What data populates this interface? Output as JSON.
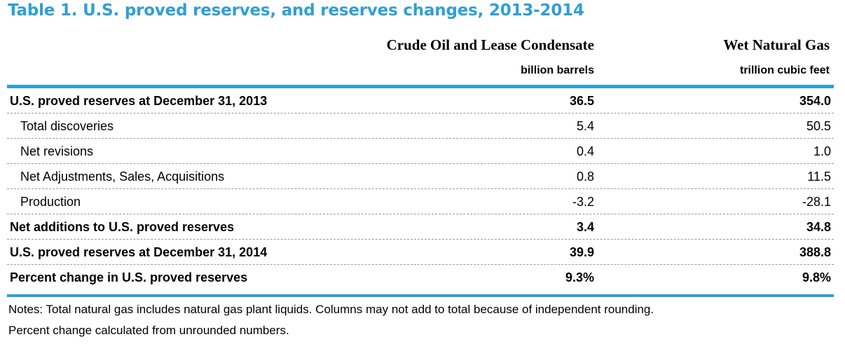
{
  "title": "Table 1. U.S. proved reserves, and reserves changes, 2013-2014",
  "columns": [
    {
      "header": "Crude Oil and Lease Condensate",
      "unit": "billion barrels"
    },
    {
      "header": "Wet Natural Gas",
      "unit": "trillion cubic feet"
    }
  ],
  "rows": [
    {
      "label": "U.S. proved reserves at December 31, 2013",
      "oil": "36.5",
      "gas": "354.0"
    },
    {
      "label": "Total discoveries",
      "oil": "5.4",
      "gas": "50.5"
    },
    {
      "label": "Net revisions",
      "oil": "0.4",
      "gas": "1.0"
    },
    {
      "label": "Net Adjustments, Sales, Acquisitions",
      "oil": "0.8",
      "gas": "11.5"
    },
    {
      "label": "Production",
      "oil": "-3.2",
      "gas": "-28.1"
    },
    {
      "label": "Net additions to U.S. proved reserves",
      "oil": "3.4",
      "gas": "34.8"
    },
    {
      "label": "U.S. proved reserves at December 31, 2014",
      "oil": "39.9",
      "gas": "388.8"
    },
    {
      "label": "Percent change in U.S. proved reserves",
      "oil": "9.3%",
      "gas": "9.8%"
    }
  ],
  "notes": {
    "line1": "Notes: Total natural gas includes natural gas plant liquids. Columns may not add to total because of independent rounding.",
    "line2": "Percent change calculated from unrounded numbers."
  },
  "colors": {
    "accent": "#2f9fd6",
    "rule_dashed": "#9a9a9a"
  }
}
